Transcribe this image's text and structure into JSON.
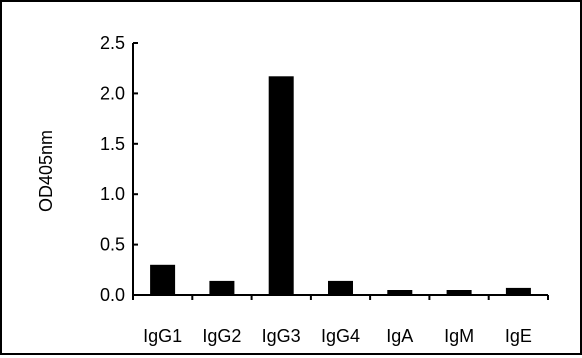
{
  "chart_data": {
    "type": "bar",
    "title": "",
    "xlabel": "",
    "ylabel": "OD405nm",
    "categories": [
      "IgG1",
      "IgG2",
      "IgG3",
      "IgG4",
      "IgA",
      "IgM",
      "IgE"
    ],
    "values": [
      0.3,
      0.14,
      2.17,
      0.14,
      0.05,
      0.05,
      0.07
    ],
    "ylim": [
      0,
      2.5
    ],
    "yticks": [
      0.0,
      0.5,
      1.0,
      1.5,
      2.0,
      2.5
    ],
    "ytick_labels": [
      "0.0",
      "0.5",
      "1.0",
      "1.5",
      "2.0",
      "2.5"
    ],
    "grid": false,
    "legend": "none",
    "bar_color": "#000000"
  }
}
